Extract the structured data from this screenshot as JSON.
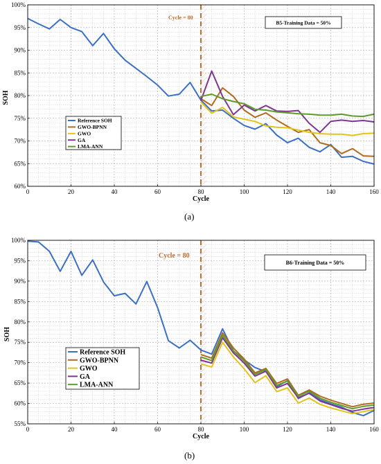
{
  "figure": {
    "caption_a": "(a)",
    "caption_b": "(b)"
  },
  "colors": {
    "reference": "#3a6fc4",
    "gwo_bpnn": "#b06a1e",
    "gwo": "#e2c31c",
    "ga": "#7e3592",
    "lma_ann": "#5f9a2a",
    "cycle_line": "#c06d2e",
    "shade": "#f6dfe2"
  },
  "chart_data": [
    {
      "type": "line",
      "title": "",
      "xlabel": "Cycle",
      "ylabel": "SOH",
      "xlim": [
        0,
        160
      ],
      "ylim": [
        60,
        100
      ],
      "x_ticks": [
        "0",
        "20",
        "40",
        "60",
        "80",
        "100",
        "120",
        "140",
        "160"
      ],
      "y_ticks": [
        "60%",
        "65%",
        "70%",
        "75%",
        "80%",
        "85%",
        "90%",
        "95%",
        "100%"
      ],
      "grid": true,
      "legend_position": "middle-left",
      "annotations": {
        "cycle_marker": "Cycle = 80",
        "info_box": "B5-Training Data = 50%"
      },
      "split_cycle": 80,
      "series": [
        {
          "name": "Reference SOH",
          "color_key": "reference",
          "points": [
            [
              0,
              97
            ],
            [
              5,
              95.8
            ],
            [
              10,
              94.7
            ],
            [
              15,
              96.8
            ],
            [
              20,
              95
            ],
            [
              25,
              94.1
            ],
            [
              30,
              91
            ],
            [
              35,
              93.7
            ],
            [
              40,
              90.3
            ],
            [
              45,
              87.8
            ],
            [
              50,
              86
            ],
            [
              55,
              84.2
            ],
            [
              60,
              82.3
            ],
            [
              65,
              79.9
            ],
            [
              70,
              80.3
            ],
            [
              75,
              82.9
            ],
            [
              80,
              79
            ],
            [
              85,
              76.6
            ],
            [
              90,
              76.8
            ],
            [
              95,
              75
            ],
            [
              100,
              73.4
            ],
            [
              105,
              72.6
            ],
            [
              110,
              73.8
            ],
            [
              115,
              71.3
            ],
            [
              120,
              69.6
            ],
            [
              125,
              70.6
            ],
            [
              130,
              68.6
            ],
            [
              135,
              67.6
            ],
            [
              140,
              69.2
            ],
            [
              145,
              66.4
            ],
            [
              150,
              66.6
            ],
            [
              155,
              65.5
            ],
            [
              160,
              64.9
            ]
          ]
        },
        {
          "name": "GWO-BPNN",
          "color_key": "gwo_bpnn",
          "points": [
            [
              80,
              79.3
            ],
            [
              85,
              77.8
            ],
            [
              90,
              81.7
            ],
            [
              95,
              79.8
            ],
            [
              100,
              76.8
            ],
            [
              105,
              75.2
            ],
            [
              110,
              76.2
            ],
            [
              115,
              74.6
            ],
            [
              120,
              73.2
            ],
            [
              125,
              71.9
            ],
            [
              130,
              72.5
            ],
            [
              135,
              69.6
            ],
            [
              140,
              69
            ],
            [
              145,
              67.2
            ],
            [
              150,
              68.3
            ],
            [
              155,
              66.7
            ],
            [
              160,
              66.6
            ]
          ]
        },
        {
          "name": "GWO",
          "color_key": "gwo",
          "points": [
            [
              80,
              78.6
            ],
            [
              85,
              76.1
            ],
            [
              90,
              77.4
            ],
            [
              95,
              75.3
            ],
            [
              100,
              74.8
            ],
            [
              105,
              74.3
            ],
            [
              110,
              73.3
            ],
            [
              115,
              73
            ],
            [
              120,
              72.9
            ],
            [
              125,
              72.4
            ],
            [
              130,
              71.9
            ],
            [
              135,
              71.6
            ],
            [
              140,
              71.5
            ],
            [
              145,
              71.5
            ],
            [
              150,
              71.2
            ],
            [
              155,
              71.6
            ],
            [
              160,
              71.7
            ]
          ]
        },
        {
          "name": "GA",
          "color_key": "ga",
          "points": [
            [
              80,
              78.9
            ],
            [
              85,
              85.4
            ],
            [
              90,
              79.8
            ],
            [
              95,
              75.8
            ],
            [
              100,
              77.9
            ],
            [
              105,
              76.6
            ],
            [
              110,
              77.8
            ],
            [
              115,
              76.6
            ],
            [
              120,
              76.5
            ],
            [
              125,
              76.7
            ],
            [
              130,
              73.9
            ],
            [
              135,
              71.9
            ],
            [
              140,
              74.3
            ],
            [
              145,
              74.6
            ],
            [
              150,
              74.3
            ],
            [
              155,
              74.5
            ],
            [
              160,
              74.2
            ]
          ]
        },
        {
          "name": "LMA-ANN",
          "color_key": "lma_ann",
          "points": [
            [
              80,
              79.8
            ],
            [
              85,
              80.3
            ],
            [
              90,
              79.3
            ],
            [
              95,
              78.7
            ],
            [
              100,
              78.2
            ],
            [
              105,
              77
            ],
            [
              110,
              76.8
            ],
            [
              115,
              76.4
            ],
            [
              120,
              76.2
            ],
            [
              125,
              76
            ],
            [
              130,
              75.9
            ],
            [
              135,
              75.7
            ],
            [
              140,
              75.7
            ],
            [
              145,
              75.9
            ],
            [
              150,
              75.5
            ],
            [
              155,
              75.4
            ],
            [
              160,
              75.9
            ]
          ]
        }
      ]
    },
    {
      "type": "line",
      "title": "",
      "xlabel": "Cycle",
      "ylabel": "SOH",
      "xlim": [
        0,
        160
      ],
      "ylim": [
        55,
        100
      ],
      "x_ticks": [
        "0",
        "20",
        "40",
        "60",
        "80",
        "100",
        "120",
        "140",
        "160"
      ],
      "y_ticks": [
        "55%",
        "60%",
        "65%",
        "70%",
        "75%",
        "80%",
        "85%",
        "90%",
        "95%",
        "100%"
      ],
      "grid": true,
      "legend_position": "bottom-left",
      "annotations": {
        "cycle_marker": "Cycle = 80",
        "info_box": "B6-Training Data = 50%"
      },
      "split_cycle": 80,
      "series": [
        {
          "name": "Reference SOH",
          "color_key": "reference",
          "points": [
            [
              0,
              99.8
            ],
            [
              5,
              99.6
            ],
            [
              10,
              97.3
            ],
            [
              15,
              92.4
            ],
            [
              20,
              97.3
            ],
            [
              25,
              91.4
            ],
            [
              30,
              95.2
            ],
            [
              35,
              89.8
            ],
            [
              40,
              86.4
            ],
            [
              45,
              87
            ],
            [
              50,
              84.4
            ],
            [
              55,
              89.9
            ],
            [
              60,
              83.5
            ],
            [
              65,
              75.4
            ],
            [
              70,
              73.6
            ],
            [
              75,
              75.5
            ],
            [
              80,
              73.1
            ],
            [
              85,
              72.1
            ],
            [
              90,
              78.3
            ],
            [
              95,
              72.9
            ],
            [
              100,
              70.7
            ],
            [
              105,
              68.8
            ],
            [
              110,
              67.8
            ],
            [
              115,
              64.1
            ],
            [
              120,
              65.6
            ],
            [
              125,
              61.2
            ],
            [
              130,
              62.6
            ],
            [
              135,
              60.9
            ],
            [
              140,
              59.9
            ],
            [
              145,
              59.1
            ],
            [
              150,
              57.8
            ],
            [
              155,
              57
            ],
            [
              160,
              58.3
            ]
          ]
        },
        {
          "name": "GWO-BPNN",
          "color_key": "gwo_bpnn",
          "points": [
            [
              80,
              72
            ],
            [
              85,
              71.1
            ],
            [
              90,
              77.3
            ],
            [
              95,
              73.6
            ],
            [
              100,
              70.9
            ],
            [
              105,
              67.5
            ],
            [
              110,
              68.6
            ],
            [
              115,
              64.9
            ],
            [
              120,
              66
            ],
            [
              125,
              62
            ],
            [
              130,
              63.3
            ],
            [
              135,
              61.8
            ],
            [
              140,
              60.8
            ],
            [
              145,
              60
            ],
            [
              150,
              59.2
            ],
            [
              155,
              59.8
            ],
            [
              160,
              60.1
            ]
          ]
        },
        {
          "name": "GWO",
          "color_key": "gwo",
          "points": [
            [
              80,
              69.7
            ],
            [
              85,
              68.9
            ],
            [
              90,
              75
            ],
            [
              95,
              71.4
            ],
            [
              100,
              68.5
            ],
            [
              105,
              65.1
            ],
            [
              110,
              66.8
            ],
            [
              115,
              62.9
            ],
            [
              120,
              63.8
            ],
            [
              125,
              60.1
            ],
            [
              130,
              61.3
            ],
            [
              135,
              59.8
            ],
            [
              140,
              58.9
            ],
            [
              145,
              58.2
            ],
            [
              150,
              57.5
            ],
            [
              155,
              58
            ],
            [
              160,
              58.5
            ]
          ]
        },
        {
          "name": "GA",
          "color_key": "ga",
          "points": [
            [
              80,
              70.6
            ],
            [
              85,
              69.9
            ],
            [
              90,
              76.1
            ],
            [
              95,
              72.4
            ],
            [
              100,
              69.9
            ],
            [
              105,
              66.7
            ],
            [
              110,
              67.9
            ],
            [
              115,
              63.8
            ],
            [
              120,
              64.9
            ],
            [
              125,
              61.4
            ],
            [
              130,
              62.5
            ],
            [
              135,
              60.6
            ],
            [
              140,
              59.7
            ],
            [
              145,
              58.8
            ],
            [
              150,
              58.1
            ],
            [
              155,
              58.6
            ],
            [
              160,
              59
            ]
          ]
        },
        {
          "name": "LMA-ANN",
          "color_key": "lma_ann",
          "points": [
            [
              80,
              71.4
            ],
            [
              85,
              70.5
            ],
            [
              90,
              76.7
            ],
            [
              95,
              72.9
            ],
            [
              100,
              70.4
            ],
            [
              105,
              67.1
            ],
            [
              110,
              68.3
            ],
            [
              115,
              64.4
            ],
            [
              120,
              65.5
            ],
            [
              125,
              61.8
            ],
            [
              130,
              63
            ],
            [
              135,
              61.3
            ],
            [
              140,
              60.3
            ],
            [
              145,
              59.5
            ],
            [
              150,
              58.7
            ],
            [
              155,
              59.3
            ],
            [
              160,
              59.6
            ]
          ]
        }
      ]
    }
  ]
}
